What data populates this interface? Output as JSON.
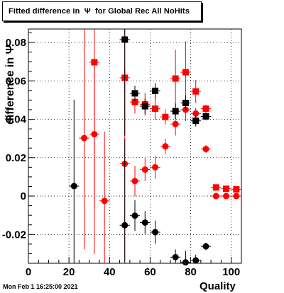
{
  "title": "Fitted difference in  Ψ  for Global Rec All NoHits",
  "date_stamp": "Mon Feb  1 16:25:00 2021",
  "chart_data": {
    "type": "scatter",
    "title": "Fitted difference in  Ψ  for Global Rec All NoHits",
    "xlabel": "Quality",
    "ylabel": "difference in Ψ",
    "xlim": [
      0,
      105
    ],
    "ylim": [
      -0.035,
      0.087
    ],
    "xticks": [
      0,
      20,
      40,
      60,
      80,
      100
    ],
    "yticks": [
      -0.02,
      0,
      0.02,
      0.04,
      0.06,
      0.08
    ],
    "ytick_labels": [
      "-0.02",
      "0",
      "0.02",
      "0.04",
      "0.06",
      "0.08"
    ],
    "grid": true,
    "series": [
      {
        "color": "#ff0000",
        "marker": "square",
        "points": [
          {
            "x": 32.5,
            "y": 0.0697,
            "err": 0.1
          },
          {
            "x": 47.5,
            "y": 0.0616,
            "err": 0.03
          },
          {
            "x": 52.5,
            "y": 0.049,
            "err": 0.006
          },
          {
            "x": 57.5,
            "y": 0.0478,
            "err": 0.006
          },
          {
            "x": 62.5,
            "y": 0.0455,
            "err": 0.006
          },
          {
            "x": 67.5,
            "y": 0.0412,
            "err": 0.004
          },
          {
            "x": 72.5,
            "y": 0.0612,
            "err": 0.015
          },
          {
            "x": 77.5,
            "y": 0.0645,
            "err": 0.016
          },
          {
            "x": 82.5,
            "y": 0.0545,
            "err": 0.006
          },
          {
            "x": 87.5,
            "y": 0.0455,
            "err": 0.002
          },
          {
            "x": 92.5,
            "y": 0.0045,
            "err": 0.0008
          },
          {
            "x": 97.5,
            "y": 0.0038,
            "err": 0.0008
          },
          {
            "x": 102.5,
            "y": 0.0035,
            "err": 0.0008
          }
        ]
      },
      {
        "color": "#ff0000",
        "marker": "circle",
        "points": [
          {
            "x": 27.5,
            "y": 0.0302,
            "err": 0.058
          },
          {
            "x": 32.5,
            "y": 0.0322,
            "err": 0.038
          },
          {
            "x": 37.5,
            "y": -0.0025,
            "err": 0.036
          },
          {
            "x": 47.5,
            "y": 0.0168,
            "err": 0.05
          },
          {
            "x": 52.5,
            "y": 0.0078,
            "err": 0.008
          },
          {
            "x": 57.5,
            "y": 0.0138,
            "err": 0.006
          },
          {
            "x": 62.5,
            "y": 0.015,
            "err": 0.006
          },
          {
            "x": 67.5,
            "y": 0.0259,
            "err": 0.004
          },
          {
            "x": 72.5,
            "y": 0.0375,
            "err": 0.006
          },
          {
            "x": 77.5,
            "y": 0.045,
            "err": 0.006
          },
          {
            "x": 82.5,
            "y": 0.043,
            "err": 0.003
          },
          {
            "x": 87.5,
            "y": 0.0245,
            "err": 0.002
          },
          {
            "x": 92.5,
            "y": 0.0,
            "err": 0.0006
          },
          {
            "x": 97.5,
            "y": 0.0,
            "err": 0.0006
          },
          {
            "x": 102.5,
            "y": 0.0,
            "err": 0.0006
          }
        ]
      },
      {
        "color": "#000000",
        "marker": "square",
        "points": [
          {
            "x": 47.5,
            "y": 0.0815,
            "err": 0.05
          },
          {
            "x": 52.5,
            "y": 0.0535,
            "err": 0.004
          },
          {
            "x": 57.5,
            "y": 0.0468,
            "err": 0.004
          },
          {
            "x": 62.5,
            "y": 0.0548,
            "err": 0.004
          },
          {
            "x": 72.5,
            "y": 0.0442,
            "err": 0.004
          },
          {
            "x": 77.5,
            "y": 0.0485,
            "err": 0.004
          },
          {
            "x": 82.5,
            "y": 0.0392,
            "err": 0.003
          },
          {
            "x": 87.5,
            "y": 0.0415,
            "err": 0.002
          }
        ]
      },
      {
        "color": "#000000",
        "marker": "circle",
        "points": [
          {
            "x": 22.5,
            "y": 0.0052,
            "err": 0.045
          },
          {
            "x": 47.5,
            "y": -0.0152,
            "err": 0.045
          },
          {
            "x": 52.5,
            "y": -0.0102,
            "err": 0.008
          },
          {
            "x": 57.5,
            "y": -0.0138,
            "err": 0.006
          },
          {
            "x": 62.5,
            "y": -0.0188,
            "err": 0.006
          },
          {
            "x": 72.5,
            "y": -0.0318,
            "err": 0.004
          },
          {
            "x": 77.5,
            "y": -0.0345,
            "err": 0.006
          },
          {
            "x": 82.5,
            "y": -0.0335,
            "err": 0.003
          },
          {
            "x": 87.5,
            "y": -0.0262,
            "err": 0.002
          }
        ]
      }
    ]
  }
}
